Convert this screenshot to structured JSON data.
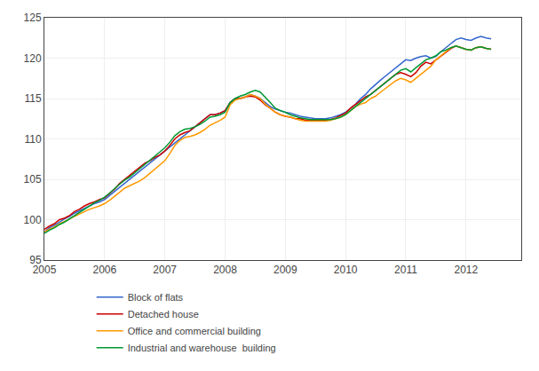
{
  "chart_data": {
    "type": "line",
    "x": [
      2005.0,
      2005.0833333333333,
      2005.1666666666667,
      2005.25,
      2005.3333333333333,
      2005.4166666666667,
      2005.5,
      2005.5833333333333,
      2005.6666666666667,
      2005.75,
      2005.8333333333333,
      2005.9166666666667,
      2006.0,
      2006.0833333333333,
      2006.1666666666667,
      2006.25,
      2006.3333333333333,
      2006.4166666666667,
      2006.5,
      2006.5833333333333,
      2006.6666666666667,
      2006.75,
      2006.8333333333333,
      2006.9166666666667,
      2007.0,
      2007.0833333333333,
      2007.1666666666667,
      2007.25,
      2007.3333333333333,
      2007.4166666666667,
      2007.5,
      2007.5833333333333,
      2007.6666666666667,
      2007.75,
      2007.8333333333333,
      2007.9166666666667,
      2008.0,
      2008.0833333333333,
      2008.1666666666667,
      2008.25,
      2008.3333333333333,
      2008.4166666666667,
      2008.5,
      2008.5833333333333,
      2008.6666666666667,
      2008.75,
      2008.8333333333333,
      2008.9166666666667,
      2009.0,
      2009.0833333333333,
      2009.1666666666667,
      2009.25,
      2009.3333333333333,
      2009.4166666666667,
      2009.5,
      2009.5833333333333,
      2009.6666666666667,
      2009.75,
      2009.8333333333333,
      2009.9166666666667,
      2010.0,
      2010.0833333333333,
      2010.1666666666667,
      2010.25,
      2010.3333333333333,
      2010.4166666666667,
      2010.5,
      2010.5833333333333,
      2010.6666666666667,
      2010.75,
      2010.8333333333333,
      2010.9166666666667,
      2011.0,
      2011.0833333333333,
      2011.1666666666667,
      2011.25,
      2011.3333333333333,
      2011.4166666666667,
      2011.5,
      2011.5833333333333,
      2011.6666666666667,
      2011.75,
      2011.8333333333333,
      2011.9166666666667,
      2012.0,
      2012.0833333333333,
      2012.1666666666667,
      2012.25,
      2012.3333333333333,
      2012.4166666666667
    ],
    "series": [
      {
        "name": "Block of flats",
        "color": "#3366cc",
        "values": [
          98.5,
          99.0,
          99.3,
          99.7,
          100.1,
          100.4,
          100.8,
          101.1,
          101.4,
          101.7,
          102.0,
          102.2,
          102.5,
          103.0,
          103.5,
          104.0,
          104.5,
          105.0,
          105.5,
          106.0,
          106.5,
          107.0,
          107.5,
          108.0,
          108.5,
          109.0,
          109.5,
          110.0,
          110.5,
          111.0,
          111.5,
          112.0,
          112.5,
          113.0,
          113.0,
          113.2,
          113.5,
          114.5,
          115.0,
          115.0,
          115.2,
          115.5,
          115.3,
          115.0,
          114.5,
          114.0,
          113.7,
          113.5,
          113.3,
          113.2,
          113.0,
          112.8,
          112.7,
          112.6,
          112.5,
          112.5,
          112.5,
          112.6,
          112.8,
          113.0,
          113.3,
          113.8,
          114.3,
          115.0,
          115.5,
          116.2,
          116.8,
          117.3,
          117.8,
          118.3,
          118.8,
          119.3,
          119.8,
          119.7,
          120.0,
          120.2,
          120.3,
          120.0,
          120.2,
          120.8,
          121.3,
          121.8,
          122.3,
          122.5,
          122.3,
          122.2,
          122.5,
          122.7,
          122.5,
          122.4
        ]
      },
      {
        "name": "Detached house",
        "color": "#cc0000",
        "values": [
          98.8,
          99.2,
          99.5,
          100.0,
          100.2,
          100.5,
          101.0,
          101.3,
          101.7,
          102.0,
          102.2,
          102.5,
          102.7,
          103.2,
          103.8,
          104.5,
          105.0,
          105.5,
          106.0,
          106.5,
          107.0,
          107.3,
          107.7,
          108.0,
          108.5,
          109.2,
          110.0,
          110.5,
          110.8,
          111.0,
          111.5,
          112.0,
          112.5,
          113.0,
          113.0,
          113.2,
          113.5,
          114.5,
          115.0,
          115.0,
          115.2,
          115.3,
          115.2,
          114.8,
          114.2,
          113.8,
          113.3,
          113.0,
          112.8,
          112.7,
          112.5,
          112.5,
          112.3,
          112.3,
          112.3,
          112.3,
          112.3,
          112.4,
          112.6,
          112.9,
          113.2,
          113.8,
          114.3,
          114.8,
          115.2,
          115.5,
          116.0,
          116.5,
          117.0,
          117.5,
          118.0,
          118.2,
          118.0,
          117.7,
          118.2,
          119.0,
          119.5,
          119.3,
          119.8,
          120.2,
          120.7,
          121.2,
          121.5,
          121.3,
          121.1,
          121.0,
          121.3,
          121.4,
          121.2,
          121.1
        ]
      },
      {
        "name": "Office and commercial building",
        "color": "#ff9900",
        "values": [
          98.5,
          98.8,
          99.1,
          99.5,
          99.8,
          100.1,
          100.4,
          100.7,
          101.0,
          101.3,
          101.5,
          101.7,
          102.0,
          102.4,
          102.9,
          103.4,
          103.9,
          104.2,
          104.5,
          104.8,
          105.2,
          105.7,
          106.2,
          106.7,
          107.3,
          108.2,
          109.2,
          109.8,
          110.2,
          110.3,
          110.5,
          110.8,
          111.2,
          111.7,
          112.0,
          112.3,
          112.7,
          114.2,
          114.8,
          115.0,
          115.2,
          115.5,
          115.3,
          115.0,
          114.3,
          113.8,
          113.3,
          113.0,
          112.8,
          112.7,
          112.5,
          112.3,
          112.2,
          112.2,
          112.2,
          112.2,
          112.2,
          112.3,
          112.5,
          112.7,
          113.0,
          113.5,
          114.0,
          114.3,
          114.5,
          115.0,
          115.3,
          115.8,
          116.3,
          116.8,
          117.2,
          117.5,
          117.3,
          117.0,
          117.5,
          118.0,
          118.5,
          119.0,
          119.8,
          120.3,
          120.8,
          121.3,
          121.5,
          121.3,
          121.1,
          121.0,
          121.3,
          121.4,
          121.2,
          121.1
        ]
      },
      {
        "name": "Industrial and warehouse  building",
        "color": "#009933",
        "values": [
          98.3,
          98.7,
          99.0,
          99.4,
          99.7,
          100.1,
          100.5,
          100.9,
          101.3,
          101.7,
          102.1,
          102.4,
          102.8,
          103.3,
          103.9,
          104.4,
          104.9,
          105.3,
          105.8,
          106.3,
          106.8,
          107.3,
          107.9,
          108.4,
          108.9,
          109.6,
          110.4,
          110.9,
          111.2,
          111.3,
          111.5,
          111.8,
          112.2,
          112.7,
          112.8,
          113.0,
          113.3,
          114.5,
          115.0,
          115.3,
          115.5,
          115.8,
          116.0,
          115.8,
          115.2,
          114.5,
          113.8,
          113.5,
          113.3,
          113.0,
          112.8,
          112.6,
          112.5,
          112.4,
          112.4,
          112.4,
          112.4,
          112.4,
          112.5,
          112.7,
          113.0,
          113.5,
          114.0,
          114.5,
          115.0,
          115.5,
          116.0,
          116.5,
          117.0,
          117.5,
          118.0,
          118.5,
          118.7,
          118.3,
          118.8,
          119.3,
          119.8,
          120.0,
          120.3,
          120.8,
          121.0,
          121.3,
          121.5,
          121.3,
          121.1,
          121.0,
          121.3,
          121.4,
          121.2,
          121.1
        ]
      }
    ],
    "xlim": [
      2005.0,
      2012.917
    ],
    "xticks": [
      2005,
      2006,
      2007,
      2008,
      2009,
      2010,
      2011,
      2012
    ],
    "ylim": [
      95,
      125
    ],
    "yticks": [
      95,
      100,
      105,
      110,
      115,
      120,
      125
    ],
    "grid": true,
    "legend": "bottom"
  }
}
